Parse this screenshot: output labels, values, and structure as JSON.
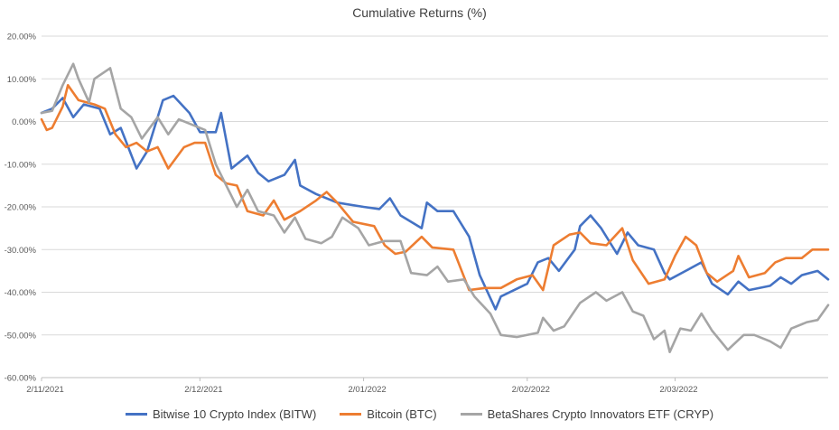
{
  "chart_data": {
    "type": "line",
    "title": "Cumulative Returns (%)",
    "xlabel": "",
    "ylabel": "",
    "ylim": [
      -60,
      20
    ],
    "y_ticks": [
      "20.00%",
      "10.00%",
      "0.00%",
      "-10.00%",
      "-20.00%",
      "-30.00%",
      "-40.00%",
      "-50.00%",
      "-60.00%"
    ],
    "y_tick_values": [
      20,
      10,
      0,
      -10,
      -20,
      -30,
      -40,
      -50,
      -60
    ],
    "x_start": "2021-11-02",
    "x_end": "2022-03-31",
    "x_ticks": [
      {
        "date": "2021-11-02",
        "label": "2/11/2021"
      },
      {
        "date": "2021-12-02",
        "label": "2/12/2021"
      },
      {
        "date": "2022-01-02",
        "label": "2/01/2022"
      },
      {
        "date": "2022-02-02",
        "label": "2/02/2022"
      },
      {
        "date": "2022-03-02",
        "label": "2/03/2022"
      }
    ],
    "grid": true,
    "legend_position": "bottom",
    "series": [
      {
        "name": "Bitwise 10 Crypto Index (BITW)",
        "color": "#4472C4",
        "points": [
          [
            "2021-11-02",
            2.0
          ],
          [
            "2021-11-04",
            3.0
          ],
          [
            "2021-11-06",
            5.5
          ],
          [
            "2021-11-08",
            1.0
          ],
          [
            "2021-11-10",
            4.0
          ],
          [
            "2021-11-13",
            3.0
          ],
          [
            "2021-11-15",
            -3.0
          ],
          [
            "2021-11-17",
            -1.5
          ],
          [
            "2021-11-20",
            -11.0
          ],
          [
            "2021-11-22",
            -7.0
          ],
          [
            "2021-11-25",
            5.0
          ],
          [
            "2021-11-27",
            6.0
          ],
          [
            "2021-11-30",
            2.0
          ],
          [
            "2021-12-02",
            -2.5
          ],
          [
            "2021-12-05",
            -2.5
          ],
          [
            "2021-12-06",
            2.0
          ],
          [
            "2021-12-08",
            -11.0
          ],
          [
            "2021-12-11",
            -8.0
          ],
          [
            "2021-12-13",
            -12.0
          ],
          [
            "2021-12-15",
            -14.0
          ],
          [
            "2021-12-18",
            -12.5
          ],
          [
            "2021-12-20",
            -9.0
          ],
          [
            "2021-12-21",
            -15.0
          ],
          [
            "2021-12-24",
            -17.0
          ],
          [
            "2021-12-28",
            -19.0
          ],
          [
            "2022-01-02",
            -20.0
          ],
          [
            "2022-01-05",
            -20.5
          ],
          [
            "2022-01-07",
            -18.0
          ],
          [
            "2022-01-09",
            -22.0
          ],
          [
            "2022-01-13",
            -25.0
          ],
          [
            "2022-01-14",
            -19.0
          ],
          [
            "2022-01-16",
            -21.0
          ],
          [
            "2022-01-19",
            -21.0
          ],
          [
            "2022-01-22",
            -27.0
          ],
          [
            "2022-01-24",
            -36.0
          ],
          [
            "2022-01-27",
            -44.0
          ],
          [
            "2022-01-28",
            -41.0
          ],
          [
            "2022-02-02",
            -38.0
          ],
          [
            "2022-02-04",
            -33.0
          ],
          [
            "2022-02-06",
            -32.0
          ],
          [
            "2022-02-08",
            -35.0
          ],
          [
            "2022-02-11",
            -30.0
          ],
          [
            "2022-02-12",
            -24.5
          ],
          [
            "2022-02-14",
            -22.0
          ],
          [
            "2022-02-16",
            -25.0
          ],
          [
            "2022-02-19",
            -31.0
          ],
          [
            "2022-02-21",
            -26.0
          ],
          [
            "2022-02-23",
            -29.0
          ],
          [
            "2022-02-26",
            -30.0
          ],
          [
            "2022-02-28",
            -35.5
          ],
          [
            "2022-03-01",
            -37.0
          ],
          [
            "2022-03-04",
            -35.0
          ],
          [
            "2022-03-07",
            -33.0
          ],
          [
            "2022-03-09",
            -38.0
          ],
          [
            "2022-03-12",
            -40.5
          ],
          [
            "2022-03-14",
            -37.5
          ],
          [
            "2022-03-16",
            -39.5
          ],
          [
            "2022-03-20",
            -38.5
          ],
          [
            "2022-03-22",
            -36.5
          ],
          [
            "2022-03-24",
            -38.0
          ],
          [
            "2022-03-26",
            -36.0
          ],
          [
            "2022-03-29",
            -35.0
          ],
          [
            "2022-03-31",
            -37.0
          ]
        ]
      },
      {
        "name": "Bitcoin (BTC)",
        "color": "#ED7D31",
        "points": [
          [
            "2021-11-02",
            0.5
          ],
          [
            "2021-11-03",
            -2.0
          ],
          [
            "2021-11-04",
            -1.5
          ],
          [
            "2021-11-06",
            3.5
          ],
          [
            "2021-11-07",
            8.5
          ],
          [
            "2021-11-09",
            5.0
          ],
          [
            "2021-11-12",
            4.0
          ],
          [
            "2021-11-14",
            3.0
          ],
          [
            "2021-11-16",
            -3.0
          ],
          [
            "2021-11-18",
            -6.0
          ],
          [
            "2021-11-20",
            -5.0
          ],
          [
            "2021-11-22",
            -7.0
          ],
          [
            "2021-11-24",
            -6.0
          ],
          [
            "2021-11-26",
            -11.0
          ],
          [
            "2021-11-29",
            -6.0
          ],
          [
            "2021-12-01",
            -5.0
          ],
          [
            "2021-12-03",
            -5.0
          ],
          [
            "2021-12-05",
            -12.5
          ],
          [
            "2021-12-07",
            -14.5
          ],
          [
            "2021-12-09",
            -15.0
          ],
          [
            "2021-12-11",
            -21.0
          ],
          [
            "2021-12-14",
            -22.0
          ],
          [
            "2021-12-16",
            -18.5
          ],
          [
            "2021-12-18",
            -23.0
          ],
          [
            "2021-12-21",
            -21.0
          ],
          [
            "2021-12-24",
            -18.5
          ],
          [
            "2021-12-26",
            -16.5
          ],
          [
            "2021-12-28",
            -19.0
          ],
          [
            "2021-12-31",
            -23.5
          ],
          [
            "2022-01-04",
            -24.5
          ],
          [
            "2022-01-06",
            -29.0
          ],
          [
            "2022-01-08",
            -31.0
          ],
          [
            "2022-01-10",
            -30.5
          ],
          [
            "2022-01-13",
            -27.0
          ],
          [
            "2022-01-15",
            -29.5
          ],
          [
            "2022-01-19",
            -30.0
          ],
          [
            "2022-01-22",
            -39.5
          ],
          [
            "2022-01-25",
            -39.0
          ],
          [
            "2022-01-28",
            -39.0
          ],
          [
            "2022-01-31",
            -37.0
          ],
          [
            "2022-02-03",
            -36.0
          ],
          [
            "2022-02-05",
            -39.5
          ],
          [
            "2022-02-07",
            -29.0
          ],
          [
            "2022-02-10",
            -26.5
          ],
          [
            "2022-02-12",
            -26.0
          ],
          [
            "2022-02-14",
            -28.5
          ],
          [
            "2022-02-17",
            -29.0
          ],
          [
            "2022-02-20",
            -25.0
          ],
          [
            "2022-02-22",
            -32.5
          ],
          [
            "2022-02-25",
            -38.0
          ],
          [
            "2022-02-28",
            -37.0
          ],
          [
            "2022-03-02",
            -31.5
          ],
          [
            "2022-03-04",
            -27.0
          ],
          [
            "2022-03-06",
            -29.0
          ],
          [
            "2022-03-08",
            -35.5
          ],
          [
            "2022-03-10",
            -37.5
          ],
          [
            "2022-03-13",
            -35.0
          ],
          [
            "2022-03-14",
            -31.5
          ],
          [
            "2022-03-16",
            -36.5
          ],
          [
            "2022-03-19",
            -35.5
          ],
          [
            "2022-03-21",
            -33.0
          ],
          [
            "2022-03-23",
            -32.0
          ],
          [
            "2022-03-26",
            -32.0
          ],
          [
            "2022-03-28",
            -30.0
          ],
          [
            "2022-03-31",
            -30.0
          ]
        ]
      },
      {
        "name": "BetaShares Crypto Innovators ETF (CRYP)",
        "color": "#A5A5A5",
        "points": [
          [
            "2021-11-02",
            2.0
          ],
          [
            "2021-11-04",
            2.5
          ],
          [
            "2021-11-06",
            8.5
          ],
          [
            "2021-11-08",
            13.5
          ],
          [
            "2021-11-09",
            10.0
          ],
          [
            "2021-11-11",
            4.5
          ],
          [
            "2021-11-12",
            10.0
          ],
          [
            "2021-11-15",
            12.5
          ],
          [
            "2021-11-17",
            3.0
          ],
          [
            "2021-11-19",
            1.0
          ],
          [
            "2021-11-21",
            -4.0
          ],
          [
            "2021-11-24",
            1.0
          ],
          [
            "2021-11-26",
            -3.0
          ],
          [
            "2021-11-28",
            0.5
          ],
          [
            "2021-12-01",
            -1.0
          ],
          [
            "2021-12-03",
            -2.0
          ],
          [
            "2021-12-05",
            -10.0
          ],
          [
            "2021-12-07",
            -15.0
          ],
          [
            "2021-12-09",
            -20.0
          ],
          [
            "2021-12-11",
            -16.0
          ],
          [
            "2021-12-13",
            -21.0
          ],
          [
            "2021-12-16",
            -22.0
          ],
          [
            "2021-12-18",
            -26.0
          ],
          [
            "2021-12-20",
            -22.5
          ],
          [
            "2021-12-22",
            -27.5
          ],
          [
            "2021-12-25",
            -28.5
          ],
          [
            "2021-12-27",
            -27.0
          ],
          [
            "2021-12-29",
            -22.5
          ],
          [
            "2022-01-01",
            -25.0
          ],
          [
            "2022-01-03",
            -29.0
          ],
          [
            "2022-01-06",
            -28.0
          ],
          [
            "2022-01-09",
            -28.0
          ],
          [
            "2022-01-11",
            -35.5
          ],
          [
            "2022-01-14",
            -36.0
          ],
          [
            "2022-01-16",
            -34.0
          ],
          [
            "2022-01-18",
            -37.5
          ],
          [
            "2022-01-21",
            -37.0
          ],
          [
            "2022-01-23",
            -41.0
          ],
          [
            "2022-01-26",
            -45.0
          ],
          [
            "2022-01-28",
            -50.0
          ],
          [
            "2022-01-31",
            -50.5
          ],
          [
            "2022-02-04",
            -49.5
          ],
          [
            "2022-02-05",
            -46.0
          ],
          [
            "2022-02-07",
            -49.0
          ],
          [
            "2022-02-09",
            -48.0
          ],
          [
            "2022-02-12",
            -42.5
          ],
          [
            "2022-02-15",
            -40.0
          ],
          [
            "2022-02-17",
            -42.0
          ],
          [
            "2022-02-20",
            -40.0
          ],
          [
            "2022-02-22",
            -44.5
          ],
          [
            "2022-02-24",
            -45.5
          ],
          [
            "2022-02-26",
            -51.0
          ],
          [
            "2022-02-28",
            -49.0
          ],
          [
            "2022-03-01",
            -54.0
          ],
          [
            "2022-03-03",
            -48.5
          ],
          [
            "2022-03-05",
            -49.0
          ],
          [
            "2022-03-07",
            -45.0
          ],
          [
            "2022-03-09",
            -49.0
          ],
          [
            "2022-03-12",
            -53.5
          ],
          [
            "2022-03-15",
            -50.0
          ],
          [
            "2022-03-17",
            -50.0
          ],
          [
            "2022-03-20",
            -51.5
          ],
          [
            "2022-03-22",
            -53.0
          ],
          [
            "2022-03-24",
            -48.5
          ],
          [
            "2022-03-27",
            -47.0
          ],
          [
            "2022-03-29",
            -46.5
          ],
          [
            "2022-03-31",
            -43.0
          ]
        ]
      }
    ]
  }
}
